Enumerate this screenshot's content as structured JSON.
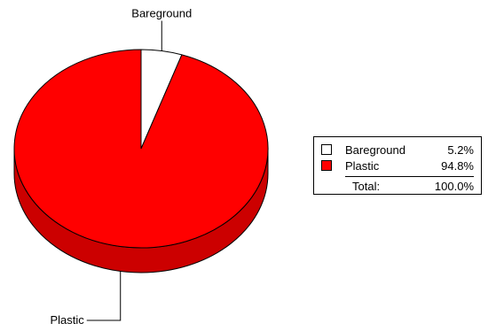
{
  "chart_data": {
    "type": "pie",
    "style": "3d",
    "slices": [
      {
        "label": "Bareground",
        "value": 5.2,
        "display": "5.2%",
        "color": "#ffffff"
      },
      {
        "label": "Plastic",
        "value": 94.8,
        "display": "94.8%",
        "color": "#ff0000"
      }
    ],
    "legend": {
      "position": "right",
      "total_label": "Total:",
      "total_value": "100.0%"
    },
    "colors": {
      "plastic_top": "#ff0000",
      "plastic_side": "#cc0000",
      "outline": "#000000"
    }
  }
}
